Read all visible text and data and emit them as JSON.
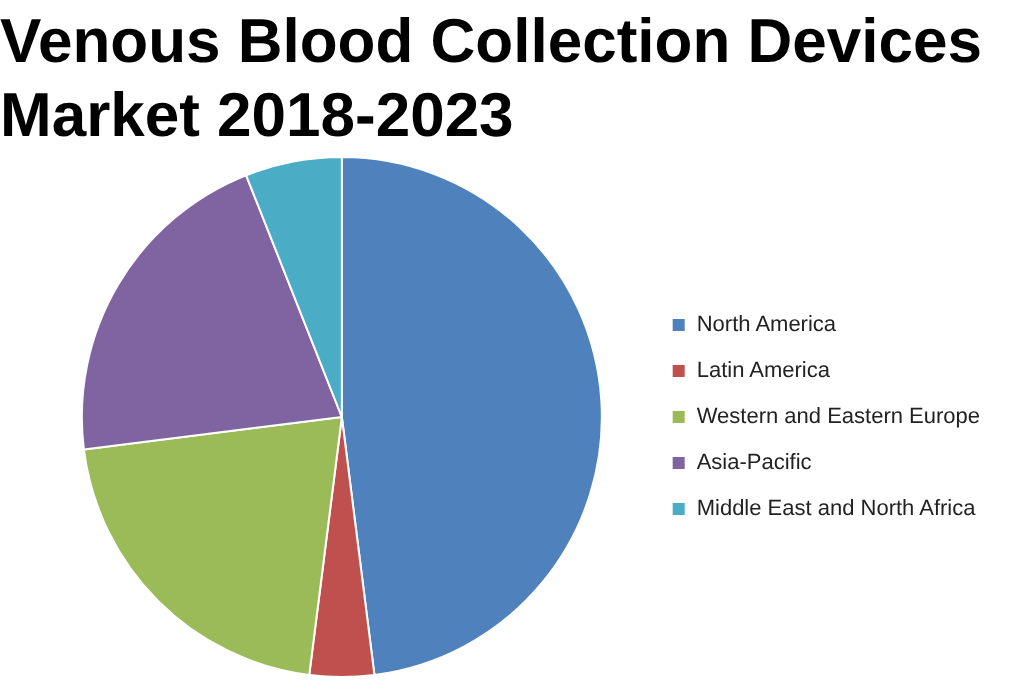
{
  "chart_data": {
    "type": "pie",
    "title": "Venous Blood Collection Devices Market  2018-2023",
    "categories": [
      "North America",
      "Latin America",
      "Western and Eastern Europe",
      "Asia-Pacific",
      "Middle East and North Africa"
    ],
    "values": [
      48,
      4,
      21,
      21,
      6
    ],
    "colors": [
      "#4f81bd",
      "#c0504d",
      "#9bbb59",
      "#8064a2",
      "#4bacc6"
    ],
    "legend": "right"
  }
}
